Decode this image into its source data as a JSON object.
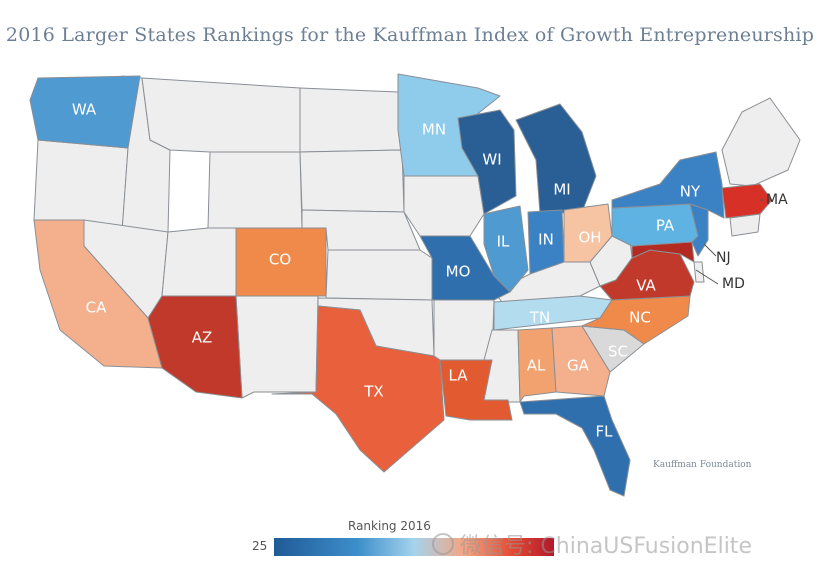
{
  "title": "2016 Larger States Rankings for the Kauffman Index of Growth Entrepreneurship",
  "source": "Kauffman Foundation",
  "legend": {
    "title": "Ranking 2016",
    "min_label": "25"
  },
  "watermark": "微信号: ChinaUSFusionElite",
  "colors": {
    "uncolored": "#eeeeee",
    "border": "#8a8f95"
  },
  "map_labels": {
    "WA": "WA",
    "MN": "MN",
    "WI": "WI",
    "MI": "MI",
    "NY": "NY",
    "MA": "MA",
    "CO": "CO",
    "IL": "IL",
    "IN": "IN",
    "OH": "OH",
    "PA": "PA",
    "NJ": "NJ",
    "MD": "MD",
    "MO": "MO",
    "VA": "VA",
    "CA": "CA",
    "AZ": "AZ",
    "TN": "TN",
    "NC": "NC",
    "SC": "SC",
    "AL": "AL",
    "GA": "GA",
    "LA": "LA",
    "TX": "TX",
    "FL": "FL"
  },
  "state_colors": {
    "WA": "#4f9ad1",
    "MN": "#8fcbea",
    "WI": "#2a5f95",
    "MI": "#2a5f95",
    "NY": "#3b82c4",
    "MA": "#d73027",
    "CO": "#ef8a4a",
    "IL": "#4f9ad1",
    "IN": "#3b82c4",
    "OH": "#f6c3a3",
    "PA": "#5fb3e2",
    "NJ": "#3b82c4",
    "MD": "#b22a22",
    "MO": "#2f6fad",
    "VA": "#c0392b",
    "CA": "#f4b08d",
    "AZ": "#c0392b",
    "TN": "#b4dcef",
    "NC": "#ef8a4a",
    "SC": "#d9d9d9",
    "AL": "#f2a26f",
    "GA": "#f4b08d",
    "LA": "#e25b30",
    "TX": "#e8603c",
    "FL": "#2f6fad"
  }
}
